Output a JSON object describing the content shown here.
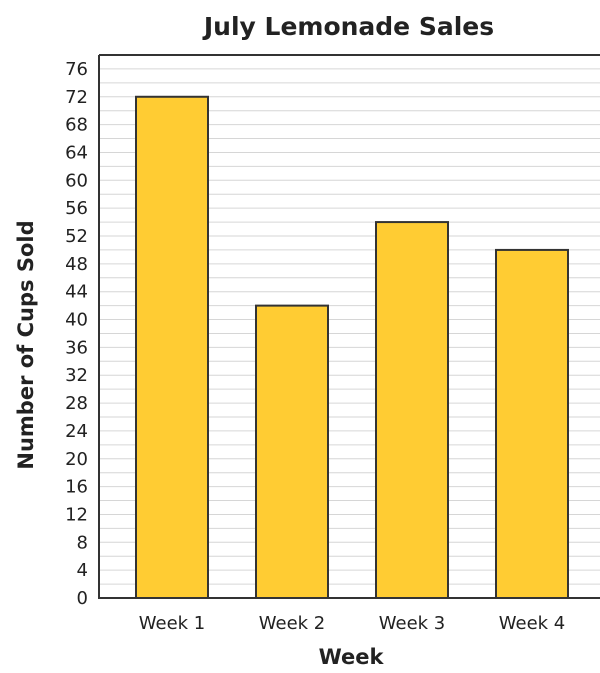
{
  "chart_data": {
    "type": "bar",
    "title": "July Lemonade Sales",
    "xlabel": "Week",
    "ylabel": "Number of Cups Sold",
    "categories": [
      "Week 1",
      "Week 2",
      "Week 3",
      "Week 4"
    ],
    "values": [
      72,
      42,
      54,
      50
    ],
    "ylim": [
      0,
      78
    ],
    "yticks": [
      0,
      4,
      8,
      12,
      16,
      20,
      24,
      28,
      32,
      36,
      40,
      44,
      48,
      52,
      56,
      60,
      64,
      68,
      72,
      76
    ],
    "minor_grid_step": 2,
    "grid": true,
    "colors": {
      "bar_fill": "#FFCC33",
      "bar_stroke": "#333333",
      "grid": "#D6D6D6",
      "axis": "#333333"
    }
  }
}
